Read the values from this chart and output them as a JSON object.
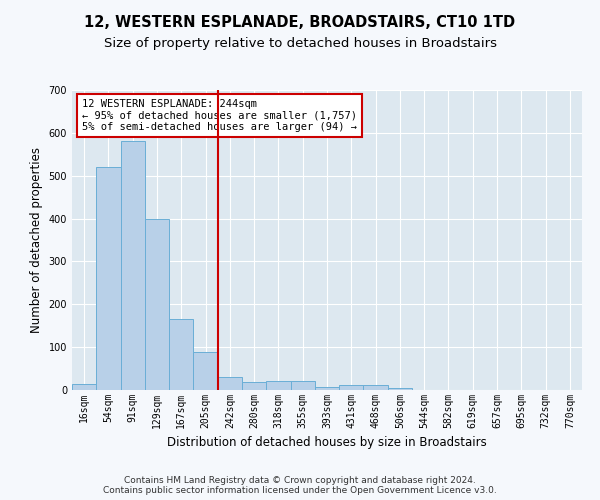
{
  "title": "12, WESTERN ESPLANADE, BROADSTAIRS, CT10 1TD",
  "subtitle": "Size of property relative to detached houses in Broadstairs",
  "xlabel": "Distribution of detached houses by size in Broadstairs",
  "ylabel": "Number of detached properties",
  "categories": [
    "16sqm",
    "54sqm",
    "91sqm",
    "129sqm",
    "167sqm",
    "205sqm",
    "242sqm",
    "280sqm",
    "318sqm",
    "355sqm",
    "393sqm",
    "431sqm",
    "468sqm",
    "506sqm",
    "544sqm",
    "582sqm",
    "619sqm",
    "657sqm",
    "695sqm",
    "732sqm",
    "770sqm"
  ],
  "values": [
    15,
    520,
    580,
    400,
    165,
    88,
    30,
    18,
    22,
    20,
    8,
    12,
    12,
    5,
    0,
    0,
    0,
    0,
    0,
    0,
    0
  ],
  "bar_color": "#b8d0e8",
  "bar_edge_color": "#6aaed6",
  "property_line_color": "#cc0000",
  "annotation_text": "12 WESTERN ESPLANADE: 244sqm\n← 95% of detached houses are smaller (1,757)\n5% of semi-detached houses are larger (94) →",
  "annotation_box_color": "#ffffff",
  "annotation_box_edge_color": "#cc0000",
  "ylim": [
    0,
    700
  ],
  "yticks": [
    0,
    100,
    200,
    300,
    400,
    500,
    600,
    700
  ],
  "fig_background_color": "#f5f8fc",
  "plot_background_color": "#dde8f0",
  "grid_color": "#ffffff",
  "footer_line1": "Contains HM Land Registry data © Crown copyright and database right 2024.",
  "footer_line2": "Contains public sector information licensed under the Open Government Licence v3.0.",
  "title_fontsize": 10.5,
  "subtitle_fontsize": 9.5,
  "axis_label_fontsize": 8.5,
  "tick_fontsize": 7,
  "annotation_fontsize": 7.5,
  "footer_fontsize": 6.5
}
